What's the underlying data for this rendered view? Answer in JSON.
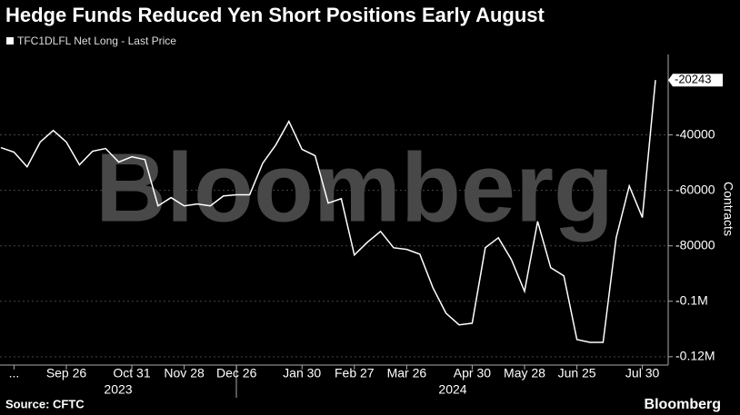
{
  "chart_data": {
    "type": "line",
    "title": "Hedge Funds Reduced Yen Short Positions Early August",
    "y_axis_label": "Contracts",
    "source": "Source: CFTC",
    "brand": "Bloomberg",
    "watermark": "Bloomberg",
    "year_labels": [
      "2023",
      "2024"
    ],
    "categories": [
      null,
      "...",
      null,
      null,
      null,
      "Sep 26",
      null,
      null,
      null,
      null,
      "Oct 31",
      null,
      null,
      null,
      "Nov 28",
      null,
      null,
      null,
      "Dec 26",
      null,
      null,
      null,
      null,
      "Jan 30",
      null,
      null,
      null,
      "Feb 27",
      null,
      null,
      null,
      "Mar 26",
      null,
      null,
      null,
      null,
      "Apr 30",
      null,
      null,
      null,
      "May 28",
      null,
      null,
      null,
      "Jun 25",
      null,
      null,
      null,
      null,
      "Jul 30",
      null
    ],
    "series": [
      {
        "name": "TFC1DLFL Net Long - Last Price",
        "color": "#ffffff",
        "values": [
          -44600,
          -46200,
          -51500,
          -42600,
          -38400,
          -42600,
          -50800,
          -45900,
          -44900,
          -49800,
          -47900,
          -48900,
          -65600,
          -62600,
          -65600,
          -64900,
          -65600,
          -62000,
          -61600,
          -61600,
          -50200,
          -43600,
          -35100,
          -45200,
          -47500,
          -64600,
          -63000,
          -83300,
          -78700,
          -74800,
          -80700,
          -81300,
          -83000,
          -95100,
          -104300,
          -108500,
          -107900,
          -80700,
          -77100,
          -85000,
          -96400,
          -71200,
          -87900,
          -90800,
          -113800,
          -114800,
          -114800,
          -77100,
          -58400,
          -69800,
          -20243
        ]
      }
    ],
    "ylim": [
      -123000,
      -11000
    ],
    "yticks": [
      -40000,
      -60000,
      -80000,
      {
        "value": -100000,
        "label": "-0.1M"
      },
      {
        "value": -120000,
        "label": "-0.12M"
      }
    ],
    "grid": true
  }
}
